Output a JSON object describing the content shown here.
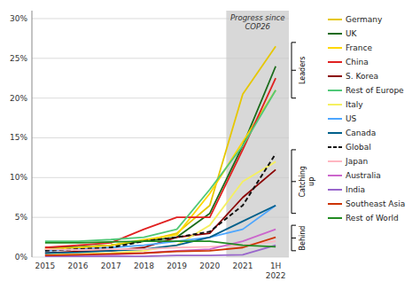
{
  "chart_data": {
    "type": "line",
    "categories": [
      "2015",
      "2016",
      "2017",
      "2018",
      "2019",
      "2020",
      "2021",
      "1H\n2022"
    ],
    "series": [
      {
        "name": "Germany",
        "color": "#e6c700",
        "line_style": "solid",
        "values": [
          1.0,
          1.2,
          1.5,
          2.0,
          3.0,
          6.5,
          20.5,
          26.5
        ]
      },
      {
        "name": "UK",
        "color": "#1a6b1a",
        "line_style": "solid",
        "values": [
          1.2,
          1.3,
          1.5,
          2.0,
          2.5,
          5.5,
          14.0,
          24.0
        ]
      },
      {
        "name": "France",
        "color": "#ffd700",
        "line_style": "solid",
        "values": [
          1.0,
          1.2,
          1.5,
          2.2,
          2.8,
          8.0,
          14.5,
          21.0
        ]
      },
      {
        "name": "China",
        "color": "#e02020",
        "line_style": "solid",
        "values": [
          1.2,
          1.5,
          1.8,
          3.5,
          5.0,
          5.0,
          13.5,
          22.5
        ]
      },
      {
        "name": "S. Korea",
        "color": "#8b0000",
        "line_style": "solid",
        "values": [
          0.5,
          0.7,
          0.8,
          1.2,
          2.5,
          3.0,
          7.5,
          11.0
        ]
      },
      {
        "name": "Rest of Europe",
        "color": "#50c878",
        "line_style": "solid",
        "values": [
          2.0,
          2.0,
          2.2,
          2.5,
          3.5,
          8.5,
          14.0,
          21.0
        ]
      },
      {
        "name": "Italy",
        "color": "#f5f060",
        "line_style": "solid",
        "values": [
          0.3,
          0.4,
          0.5,
          0.8,
          1.5,
          4.0,
          9.5,
          12.0
        ]
      },
      {
        "name": "US",
        "color": "#4da6ff",
        "line_style": "solid",
        "values": [
          0.8,
          1.0,
          1.2,
          1.5,
          2.0,
          2.5,
          3.5,
          6.5
        ]
      },
      {
        "name": "Canada",
        "color": "#005f8a",
        "line_style": "solid",
        "values": [
          0.5,
          0.6,
          0.8,
          1.0,
          1.5,
          2.5,
          4.5,
          6.5
        ]
      },
      {
        "name": "Global",
        "color": "#111111",
        "line_style": "dashed",
        "values": [
          0.8,
          1.0,
          1.2,
          2.0,
          2.5,
          3.2,
          6.5,
          13.0
        ]
      },
      {
        "name": "Japan",
        "color": "#ffb6c1",
        "line_style": "solid",
        "values": [
          1.0,
          0.9,
          1.0,
          1.0,
          1.2,
          1.3,
          1.5,
          2.0
        ]
      },
      {
        "name": "Australia",
        "color": "#cc66cc",
        "line_style": "solid",
        "values": [
          0.2,
          0.2,
          0.3,
          0.5,
          0.8,
          1.0,
          2.0,
          3.5
        ]
      },
      {
        "name": "India",
        "color": "#9966cc",
        "line_style": "solid",
        "values": [
          0.1,
          0.1,
          0.1,
          0.1,
          0.2,
          0.2,
          0.3,
          1.5
        ]
      },
      {
        "name": "Southeast Asia",
        "color": "#cc3300",
        "line_style": "solid",
        "values": [
          0.2,
          0.3,
          0.4,
          0.5,
          0.7,
          0.8,
          1.2,
          2.5
        ]
      },
      {
        "name": "Rest of World",
        "color": "#228B22",
        "line_style": "solid",
        "values": [
          1.8,
          1.8,
          1.9,
          2.0,
          2.0,
          2.0,
          1.5,
          1.3
        ]
      }
    ],
    "groups": [
      {
        "name": "Leaders",
        "y_top": 27.0,
        "y_bot": 20.0
      },
      {
        "name": "Catching\nup",
        "y_top": 13.5,
        "y_bot": 5.5
      },
      {
        "name": "Behind",
        "y_top": 4.0,
        "y_bot": 0.8
      }
    ],
    "shade": {
      "from": "2021",
      "color": "#d8d8d8"
    },
    "annotations": [
      "Progress since\nCOP26"
    ],
    "ylim": [
      0,
      31
    ],
    "yticks": [
      {
        "value": 0,
        "label": "0%"
      },
      {
        "value": 5,
        "label": "5%"
      },
      {
        "value": 10,
        "label": "10%"
      },
      {
        "value": 15,
        "label": "15%"
      },
      {
        "value": 20,
        "label": "20%"
      },
      {
        "value": 25,
        "label": "25%"
      },
      {
        "value": 30,
        "label": "30%"
      }
    ],
    "grid": true,
    "legend": "right"
  }
}
